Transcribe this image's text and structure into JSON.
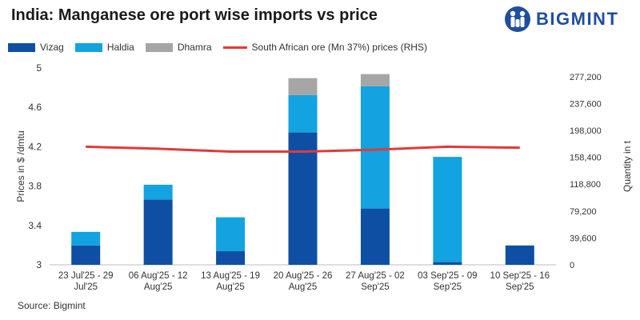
{
  "title": "India: Manganese ore port wise imports vs price",
  "brand": {
    "name": "BIGMINT",
    "logo_icon": "bigmint-logo-icon",
    "color": "#1f4e9c"
  },
  "source": "Source: Bigmint",
  "chart_data": {
    "type": "bar",
    "stacked": true,
    "title": "India: Manganese ore port wise imports vs price",
    "categories": [
      [
        "23 Jul'25 - 29",
        "Jul'25"
      ],
      [
        "06 Aug'25 - 12",
        "Aug'25"
      ],
      [
        "13 Aug'25 - 19",
        "Aug'25"
      ],
      [
        "20 Aug'25 - 26",
        "Aug'25"
      ],
      [
        "27 Aug'25 - 02",
        "Sep'25"
      ],
      [
        "03 Sep'25 - 09",
        "Sep'25"
      ],
      [
        "10 Sep'25 - 16",
        "Sep'25"
      ]
    ],
    "series": [
      {
        "name": "Vizag",
        "axis": "right",
        "color": "#0e4fa3",
        "values": [
          28500,
          96000,
          20000,
          195000,
          83000,
          4000,
          28500
        ]
      },
      {
        "name": "Haldia",
        "axis": "right",
        "color": "#12a3e0",
        "values": [
          20000,
          22000,
          50000,
          55000,
          180000,
          155000,
          0
        ]
      },
      {
        "name": "Dhamra",
        "axis": "right",
        "color": "#a6a6a6",
        "values": [
          0,
          0,
          0,
          25000,
          18000,
          0,
          0
        ]
      },
      {
        "name": "South African ore (Mn 37%) prices (RHS)",
        "type": "line",
        "axis": "left",
        "color": "#e03a3a",
        "values": [
          4.2,
          4.18,
          4.15,
          4.15,
          4.17,
          4.2,
          4.19
        ]
      }
    ],
    "ylabel": "Prices in $ /dmtu",
    "y2label": "Quantity in t",
    "ylim": [
      3,
      5
    ],
    "yticks": [
      "3",
      "3.4",
      "3.8",
      "4.2",
      "4.6",
      "5"
    ],
    "y2lim": [
      0,
      290000
    ],
    "y2ticks": [
      "0",
      "39,600",
      "79,200",
      "118,800",
      "158,400",
      "198,000",
      "237,600",
      "277,200"
    ],
    "y2tick_values": [
      0,
      39600,
      79200,
      118800,
      158400,
      198000,
      237600,
      277200
    ],
    "legend_position": "top-left",
    "grid": false
  }
}
